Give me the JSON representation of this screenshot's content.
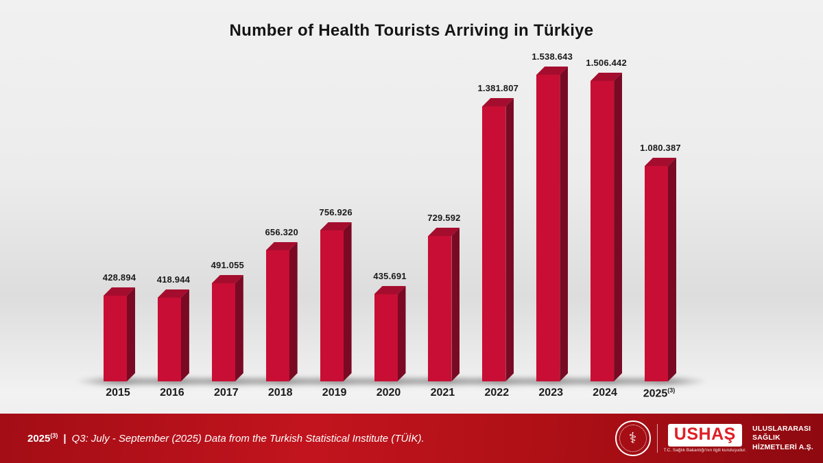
{
  "chart_data": {
    "type": "bar",
    "title": "Number of Health Tourists Arriving in Türkiye",
    "categories": [
      "2015",
      "2016",
      "2017",
      "2018",
      "2019",
      "2020",
      "2021",
      "2022",
      "2023",
      "2024",
      "2025"
    ],
    "category_superscripts": [
      "",
      "",
      "",
      "",
      "",
      "",
      "",
      "",
      "",
      "",
      "(3)"
    ],
    "values": [
      428894,
      418944,
      491055,
      656320,
      756926,
      435691,
      729592,
      1381807,
      1538643,
      1506442,
      1080387
    ],
    "value_labels": [
      "428.894",
      "418.944",
      "491.055",
      "656.320",
      "756.926",
      "435.691",
      "729.592",
      "1.381.807",
      "1.538.643",
      "1.506.442",
      "1.080.387"
    ],
    "xlabel": "",
    "ylabel": "",
    "ylim": [
      0,
      1600000
    ],
    "grid": false,
    "legend": false,
    "bar_style": "3d-extruded",
    "colors": {
      "bar_front": "#c80e34",
      "bar_side": "#7a0a24",
      "bar_top": "#a50d2e",
      "label_text": "#1a1a1a"
    }
  },
  "footer": {
    "footnote_year": "2025",
    "footnote_superscript": "(3)",
    "separator": "|",
    "footnote_text": "Q3: July - September (2025) Data from the Turkish Statistical Institute (TÜİK).",
    "background_color": "#b01117"
  },
  "logo": {
    "brand": "USHAŞ",
    "brand_color": "#de1f26",
    "tagline": "T.C. Sağlık Bakanlığı'nın ilgili kuruluşudur.",
    "company_lines": [
      "ULUSLARARASI",
      "SAĞLIK",
      "HİZMETLERİ A.Ş."
    ],
    "emblem": "turkish-ministry-of-health-emblem"
  }
}
